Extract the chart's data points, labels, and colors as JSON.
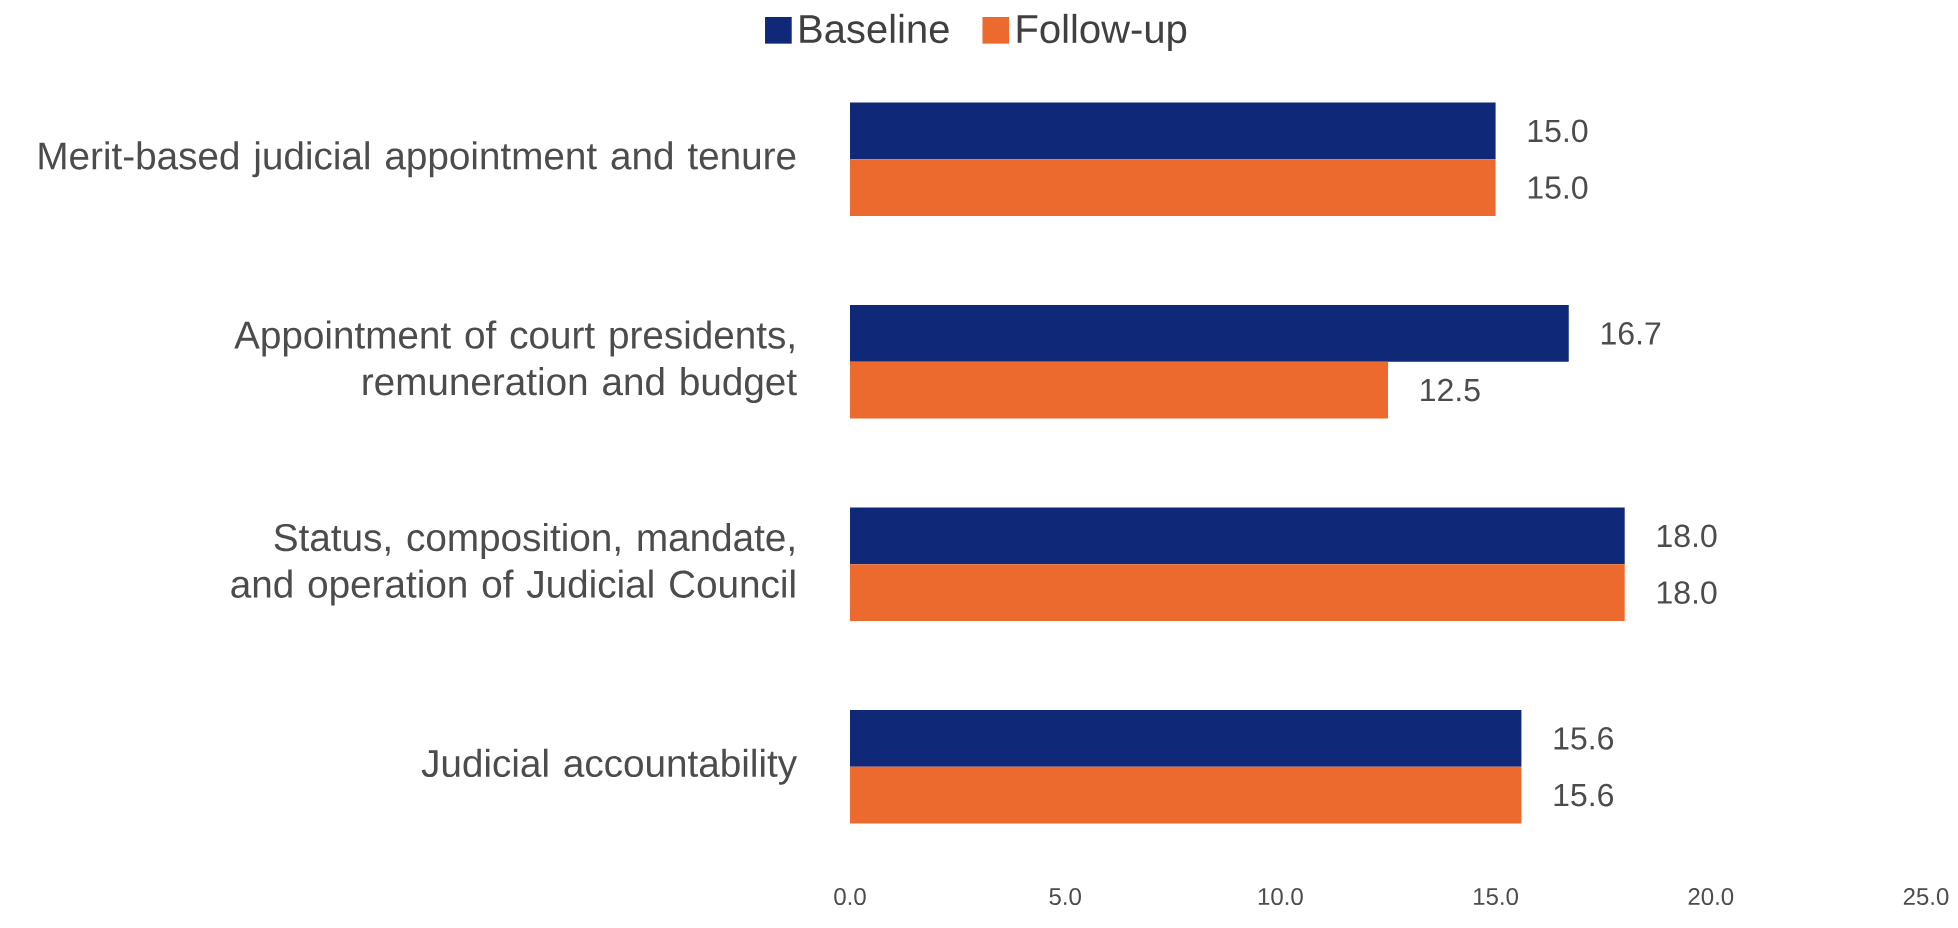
{
  "chart_data": {
    "type": "bar",
    "orientation": "horizontal",
    "categories": [
      "Merit-based judicial appointment and tenure",
      "Appointment of court presidents, remuneration and budget",
      "Status, composition, mandate, and operation of Judicial Council",
      "Judicial accountability"
    ],
    "series": [
      {
        "name": "Baseline",
        "color": "#0f2878",
        "values": [
          15.0,
          16.7,
          18.0,
          15.6
        ],
        "value_labels": [
          "15.0",
          "16.7",
          "18.0",
          "15.6"
        ]
      },
      {
        "name": "Follow-up",
        "color": "#ed6a2f",
        "values": [
          15.0,
          12.5,
          18.0,
          15.6
        ],
        "value_labels": [
          "15.0",
          "12.5",
          "18.0",
          "15.6"
        ]
      }
    ],
    "xlim": [
      0,
      25
    ],
    "xticks": [
      {
        "value": 0,
        "label": "0.0"
      },
      {
        "value": 5,
        "label": "5.0"
      },
      {
        "value": 10,
        "label": "10.0"
      },
      {
        "value": 15,
        "label": "15.0"
      },
      {
        "value": 20,
        "label": "20.0"
      },
      {
        "value": 25,
        "label": "25.0"
      }
    ],
    "legend": "top",
    "grid": false
  }
}
